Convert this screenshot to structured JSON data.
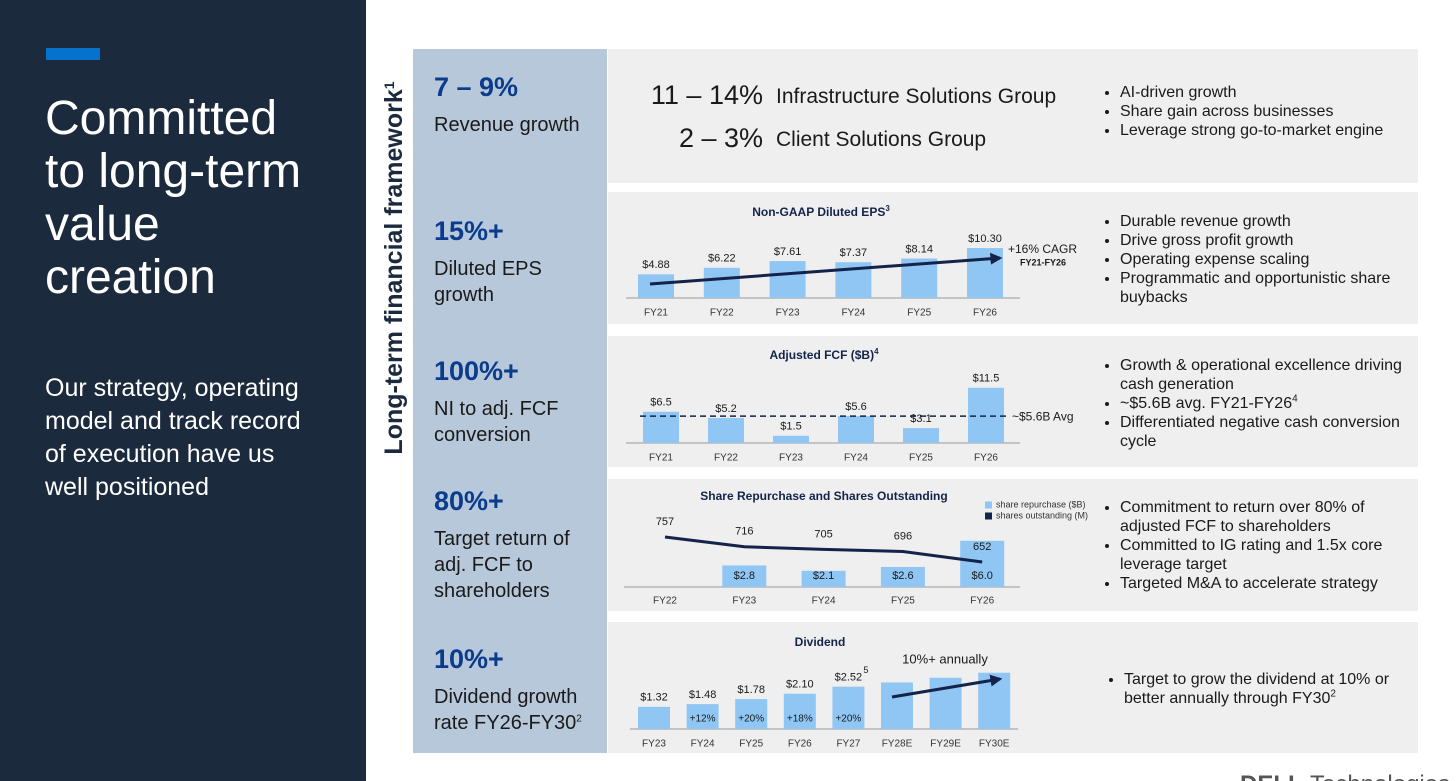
{
  "sidebar": {
    "title": "Committed to long-term value creation",
    "subtitle": "Our strategy, operating model and track record of execution have us well positioned"
  },
  "framework": {
    "label": "Long-term financial framework",
    "note": "1"
  },
  "rows": [
    {
      "target": "7 – 9%",
      "metric": "Revenue growth",
      "bullets": [
        {
          "text": "AI-driven growth"
        },
        {
          "text": "Share gain across businesses"
        },
        {
          "text": "Leverage strong go-to-market engine"
        }
      ]
    },
    {
      "target": "15%+",
      "metric": "Diluted EPS growth",
      "bullets": [
        {
          "text": "Durable revenue growth"
        },
        {
          "text": "Drive gross profit growth"
        },
        {
          "text": "Operating expense scaling"
        },
        {
          "text": "Programmatic and opportunistic share buybacks"
        }
      ]
    },
    {
      "target": "100%+",
      "metric": "NI to adj. FCF conversion",
      "bullets": [
        {
          "text": "Growth & operational excellence driving cash generation"
        },
        {
          "text": "~$5.6B avg. FY21-FY26",
          "note": "4"
        },
        {
          "text": "Differentiated negative cash conversion cycle"
        }
      ]
    },
    {
      "target": "80%+",
      "metric": "Target return of adj. FCF to shareholders",
      "bullets": [
        {
          "text": "Commitment to return over 80% of adjusted FCF to shareholders"
        },
        {
          "text": "Committed to IG rating and 1.5x core leverage target"
        },
        {
          "text": "Targeted M&A to accelerate strategy"
        }
      ]
    },
    {
      "target": "10%+",
      "metric": "Dividend growth rate FY26-FY30",
      "metric_note": "2",
      "bullets": [
        {
          "text": "Target to grow the dividend at 10% or better annually through FY30",
          "note": "2"
        }
      ]
    }
  ],
  "segments": [
    {
      "target": "11 – 14%",
      "name": "Infrastructure Solutions Group"
    },
    {
      "target": "2 – 3%",
      "name": "Client Solutions Group"
    }
  ],
  "chart_data": [
    {
      "type": "bar",
      "title": "Non-GAAP Diluted EPS",
      "title_note": "3",
      "categories": [
        "FY21",
        "FY22",
        "FY23",
        "FY24",
        "FY25",
        "FY26"
      ],
      "values": [
        4.88,
        6.22,
        7.61,
        7.37,
        8.14,
        10.3
      ],
      "value_labels": [
        "$4.88",
        "$6.22",
        "$7.61",
        "$7.37",
        "$8.14",
        "$10.30"
      ],
      "color": "#8fc6f4",
      "annotation": "+16% CAGR",
      "annotation_period": "FY21-FY26"
    },
    {
      "type": "bar",
      "title": "Adjusted FCF ($B)",
      "title_note": "4",
      "categories": [
        "FY21",
        "FY22",
        "FY23",
        "FY24",
        "FY25",
        "FY26"
      ],
      "values": [
        6.5,
        5.2,
        1.5,
        5.6,
        3.1,
        11.5
      ],
      "value_labels": [
        "$6.5",
        "$5.2",
        "$1.5",
        "$5.6",
        "$3.1",
        "$11.5"
      ],
      "color": "#8fc6f4",
      "average": 5.6,
      "average_label": "~$5.6B Avg"
    },
    {
      "type": "bar_line",
      "title": "Share Repurchase and Shares Outstanding",
      "categories": [
        "FY22",
        "FY23",
        "FY24",
        "FY25",
        "FY26"
      ],
      "series": [
        {
          "name": "share repurchase ($B)",
          "color": "#8fc6f4",
          "values": [
            null,
            2.8,
            2.1,
            2.6,
            6.0
          ],
          "value_labels": [
            null,
            "$2.8",
            "$2.1",
            "$2.6",
            "$6.0"
          ]
        },
        {
          "name": "shares outstanding (M)",
          "color": "#14234a",
          "values": [
            757,
            716,
            705,
            696,
            652
          ]
        }
      ]
    },
    {
      "type": "bar",
      "title": "Dividend",
      "categories": [
        "FY23",
        "FY24",
        "FY25",
        "FY26",
        "FY27",
        "FY28E",
        "FY29E",
        "FY30E"
      ],
      "values": [
        1.32,
        1.48,
        1.78,
        2.1,
        2.52,
        2.77,
        3.05,
        3.35
      ],
      "value_labels": [
        "$1.32",
        "$1.48",
        "$1.78",
        "$2.10",
        "$2.52",
        null,
        null,
        null
      ],
      "value_notes": [
        null,
        null,
        null,
        null,
        "5",
        null,
        null,
        null
      ],
      "growth_labels": [
        null,
        "+12%",
        "+20%",
        "+18%",
        "+20%",
        null,
        null,
        null
      ],
      "color": "#8fc6f4",
      "annotation": "10%+ annually"
    }
  ],
  "footer": {
    "logo": "DELL",
    "brand": "Technologies"
  }
}
